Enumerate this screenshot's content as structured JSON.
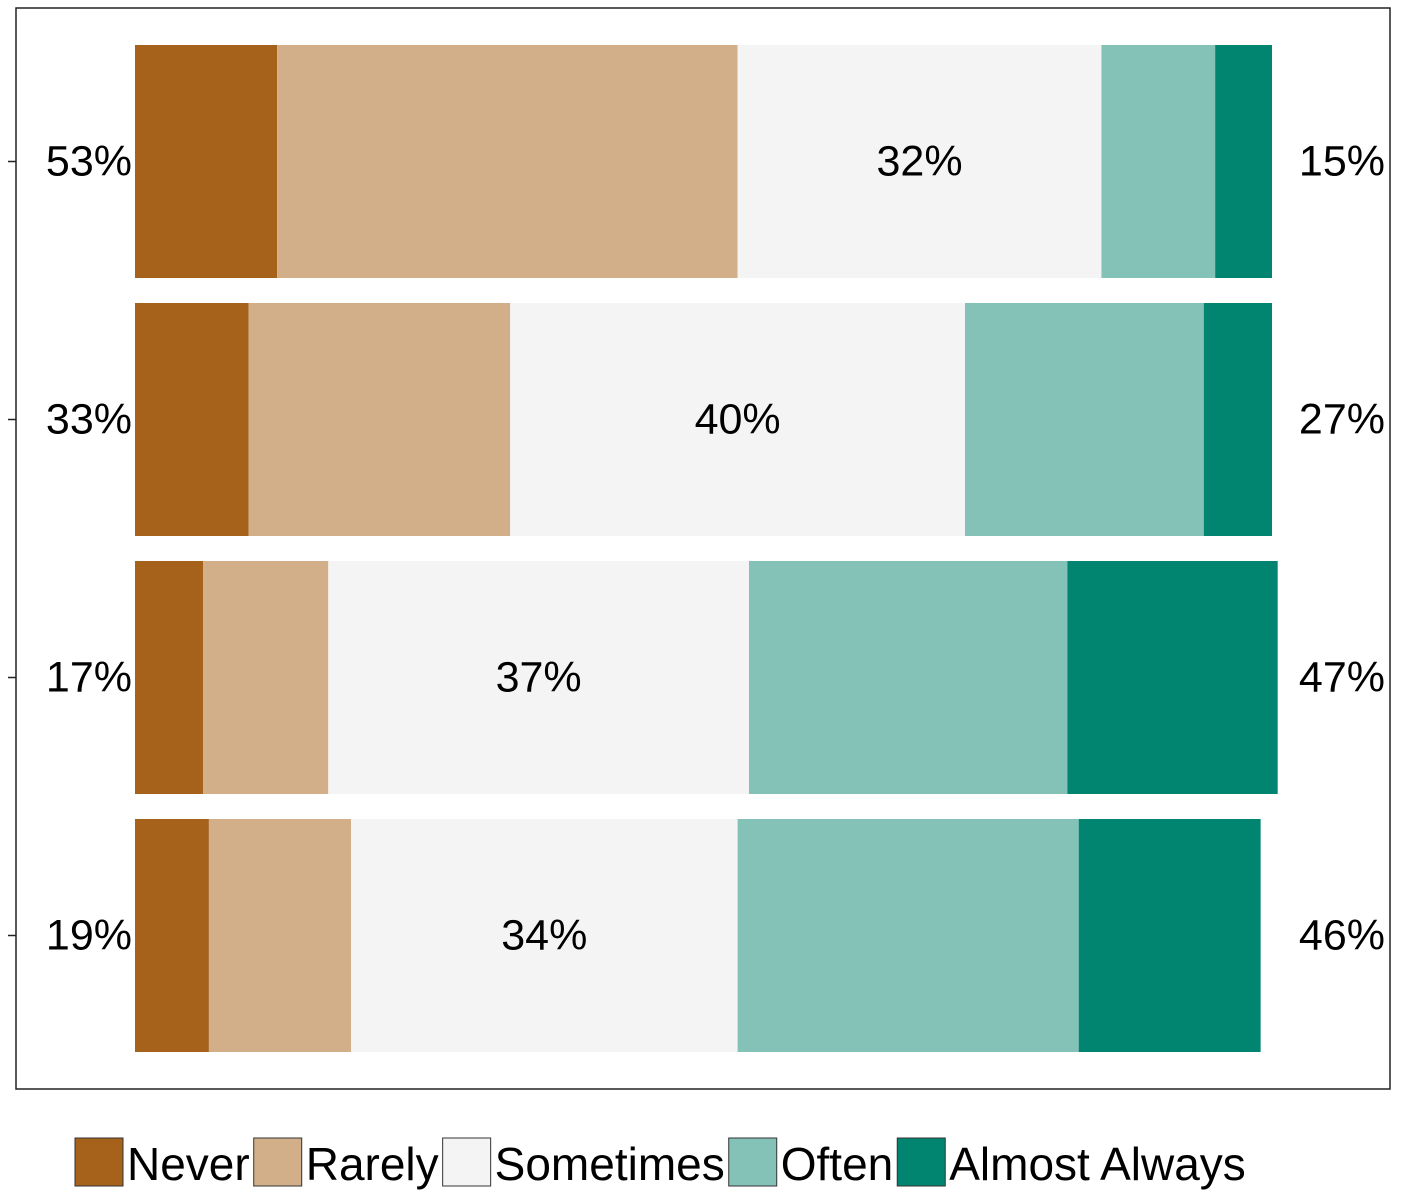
{
  "chart_data": {
    "type": "bar",
    "orientation": "horizontal",
    "stacked": true,
    "diverging": true,
    "categories": [
      "",
      "",
      "",
      ""
    ],
    "series": [
      {
        "name": "Never",
        "color": "#a6611a",
        "values": [
          12.5,
          10.0,
          6.0,
          6.5
        ]
      },
      {
        "name": "Rarely",
        "color": "#d2af89",
        "values": [
          40.5,
          23.0,
          11.0,
          12.5
        ]
      },
      {
        "name": "Sometimes",
        "color": "#f4f4f4",
        "values": [
          32.0,
          40.0,
          37.0,
          34.0
        ]
      },
      {
        "name": "Often",
        "color": "#84c1b7",
        "values": [
          10.0,
          21.0,
          28.0,
          30.0
        ]
      },
      {
        "name": "Almost Always",
        "color": "#018571",
        "values": [
          5.0,
          6.0,
          18.5,
          16.0
        ]
      }
    ],
    "left_labels": [
      "53%",
      "33%",
      "17%",
      "19%"
    ],
    "center_labels": [
      "32%",
      "40%",
      "37%",
      "34%"
    ],
    "right_labels": [
      "15%",
      "27%",
      "47%",
      "46%"
    ],
    "xlim": [
      0,
      100
    ],
    "grid": false,
    "legend_position": "bottom",
    "title": "",
    "xlabel": "",
    "ylabel": ""
  }
}
